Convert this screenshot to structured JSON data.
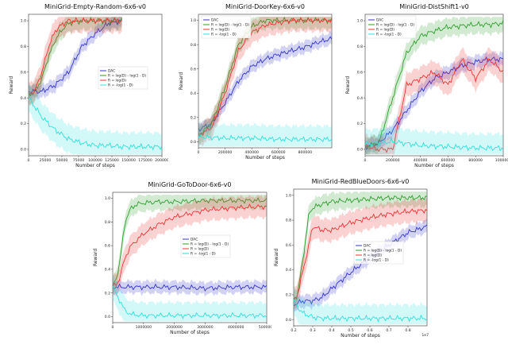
{
  "chart_data": [
    {
      "type": "line",
      "title": "MiniGrid-Empty-Random-6x6-v0",
      "xlabel": "Number of steps",
      "ylabel": "Reward",
      "xlim": [
        0,
        200000
      ],
      "ylim": [
        -0.05,
        1.05
      ],
      "xticks": [
        0,
        25000,
        50000,
        75000,
        100000,
        125000,
        150000,
        175000,
        200000
      ],
      "xtick_labels": [
        "0",
        "25000",
        "50000",
        "75000",
        "100000",
        "125000",
        "150000",
        "175000",
        "200000"
      ],
      "yticks": [
        0.0,
        0.2,
        0.4,
        0.6,
        0.8,
        1.0
      ],
      "ytick_labels": [
        "0.0",
        "0.2",
        "0.4",
        "0.6",
        "0.8",
        "1.0"
      ],
      "legend_position": "center-right",
      "series": [
        {
          "name": "DAC",
          "color": "#3333cc",
          "x": [
            0,
            20000,
            40000,
            60000,
            80000,
            100000,
            120000,
            140000
          ],
          "y": [
            0.45,
            0.45,
            0.5,
            0.6,
            0.8,
            0.9,
            0.98,
            1.0
          ]
        },
        {
          "name": "R = log(D) - log(1 - D)",
          "color": "#2e9e2e",
          "x": [
            0,
            10000,
            20000,
            30000,
            40000,
            50000,
            60000,
            80000,
            140000
          ],
          "y": [
            0.42,
            0.45,
            0.55,
            0.72,
            0.85,
            0.93,
            0.98,
            1.0,
            1.0
          ]
        },
        {
          "name": "R = log(D)",
          "color": "#ee3333",
          "x": [
            0,
            10000,
            20000,
            30000,
            40000,
            50000,
            60000,
            80000,
            140000
          ],
          "y": [
            0.42,
            0.46,
            0.6,
            0.8,
            0.92,
            0.97,
            1.0,
            1.0,
            1.0
          ]
        },
        {
          "name": "R = -log(1 - D)",
          "color": "#33dddd",
          "x": [
            0,
            20000,
            40000,
            60000,
            80000,
            100000,
            120000,
            140000,
            160000,
            200000
          ],
          "y": [
            0.4,
            0.25,
            0.15,
            0.08,
            0.05,
            0.03,
            0.03,
            0.02,
            0.02,
            0.02
          ]
        }
      ]
    },
    {
      "type": "line",
      "title": "MiniGrid-DoorKey-6x6-v0",
      "xlabel": "Number of steps",
      "ylabel": "Reward",
      "xlim": [
        0,
        1000000
      ],
      "ylim": [
        -0.05,
        1.05
      ],
      "xticks": [
        0,
        200000,
        400000,
        600000,
        800000
      ],
      "xtick_labels": [
        "0",
        "200000",
        "400000",
        "600000",
        "800000"
      ],
      "yticks": [
        0.0,
        0.2,
        0.4,
        0.6,
        0.8,
        1.0
      ],
      "ytick_labels": [
        "0.0",
        "0.2",
        "0.4",
        "0.6",
        "0.8",
        "1.0"
      ],
      "legend_position": "top-left",
      "series": [
        {
          "name": "DAC",
          "color": "#3333cc",
          "x": [
            0,
            100000,
            200000,
            300000,
            400000,
            500000,
            600000,
            700000,
            800000,
            900000,
            1000000
          ],
          "y": [
            0.1,
            0.15,
            0.32,
            0.5,
            0.62,
            0.68,
            0.72,
            0.75,
            0.78,
            0.82,
            0.85
          ]
        },
        {
          "name": "R = log(D) - log(1 - D)",
          "color": "#2e9e2e",
          "x": [
            0,
            100000,
            200000,
            300000,
            400000,
            500000,
            600000,
            700000,
            1000000
          ],
          "y": [
            0.05,
            0.15,
            0.45,
            0.8,
            0.95,
            1.0,
            1.0,
            1.0,
            1.0
          ]
        },
        {
          "name": "R = log(D)",
          "color": "#ee3333",
          "x": [
            0,
            100000,
            200000,
            300000,
            400000,
            500000,
            600000,
            700000,
            1000000
          ],
          "y": [
            0.05,
            0.12,
            0.4,
            0.75,
            0.9,
            0.96,
            0.98,
            1.0,
            1.0
          ]
        },
        {
          "name": "R = -log(1 - D)",
          "color": "#33dddd",
          "x": [
            0,
            200000,
            400000,
            600000,
            800000,
            1000000
          ],
          "y": [
            0.04,
            0.03,
            0.03,
            0.02,
            0.02,
            0.02
          ]
        }
      ]
    },
    {
      "type": "line",
      "title": "MiniGrid-DistShift1-v0",
      "xlabel": "Number of steps",
      "ylabel": "Reward",
      "xlim": [
        0,
        1000000
      ],
      "ylim": [
        -0.05,
        1.05
      ],
      "xticks": [
        0,
        200000,
        400000,
        600000,
        800000,
        1000000
      ],
      "xtick_labels": [
        "0",
        "200000",
        "400000",
        "600000",
        "800000",
        "1000000"
      ],
      "yticks": [
        0.0,
        0.2,
        0.4,
        0.6,
        0.8,
        1.0
      ],
      "ytick_labels": [
        "0.0",
        "0.2",
        "0.4",
        "0.6",
        "0.8",
        "1.0"
      ],
      "legend_position": "top-left",
      "series": [
        {
          "name": "DAC",
          "color": "#3333cc",
          "x": [
            0,
            100000,
            200000,
            300000,
            400000,
            500000,
            600000,
            700000,
            800000,
            900000,
            1000000
          ],
          "y": [
            0.02,
            0.05,
            0.15,
            0.3,
            0.45,
            0.55,
            0.6,
            0.65,
            0.68,
            0.7,
            0.7
          ]
        },
        {
          "name": "R = log(D) - log(1 - D)",
          "color": "#2e9e2e",
          "x": [
            0,
            100000,
            200000,
            300000,
            400000,
            500000,
            600000,
            700000,
            800000,
            900000,
            1000000
          ],
          "y": [
            0.02,
            0.05,
            0.4,
            0.75,
            0.88,
            0.92,
            0.95,
            0.96,
            0.97,
            0.97,
            0.98
          ]
        },
        {
          "name": "R = log(D)",
          "color": "#ee3333",
          "x": [
            0,
            100000,
            200000,
            300000,
            400000,
            500000,
            600000,
            700000,
            800000,
            900000,
            1000000
          ],
          "y": [
            0.02,
            0.0,
            0.0,
            0.5,
            0.55,
            0.6,
            0.5,
            0.7,
            0.55,
            0.7,
            0.6
          ]
        },
        {
          "name": "R = -log(1 - D)",
          "color": "#33dddd",
          "x": [
            0,
            200000,
            400000,
            600000,
            800000,
            1000000
          ],
          "y": [
            0.04,
            0.06,
            0.03,
            0.02,
            0.01,
            0.01
          ]
        }
      ]
    },
    {
      "type": "line",
      "title": "MiniGrid-GoToDoor-6x6-v0",
      "xlabel": "Number of steps",
      "ylabel": "Reward",
      "xlim": [
        0,
        5000000
      ],
      "ylim": [
        -0.05,
        1.05
      ],
      "xticks": [
        0,
        1000000,
        2000000,
        3000000,
        4000000,
        5000000
      ],
      "xtick_labels": [
        "0",
        "1000000",
        "2000000",
        "3000000",
        "4000000",
        "5000000"
      ],
      "yticks": [
        0.0,
        0.2,
        0.4,
        0.6,
        0.8,
        1.0
      ],
      "ytick_labels": [
        "0.0",
        "0.2",
        "0.4",
        "0.6",
        "0.8",
        "1.0"
      ],
      "legend_position": "center-right",
      "series": [
        {
          "name": "DAC",
          "color": "#3333cc",
          "x": [
            0,
            500000,
            1000000,
            2000000,
            3000000,
            4000000,
            5000000
          ],
          "y": [
            0.25,
            0.25,
            0.25,
            0.25,
            0.24,
            0.25,
            0.25
          ]
        },
        {
          "name": "R = log(D) - log(1 - D)",
          "color": "#2e9e2e",
          "x": [
            0,
            200000,
            400000,
            600000,
            800000,
            1000000,
            1500000,
            2000000,
            3000000,
            4000000,
            5000000
          ],
          "y": [
            0.25,
            0.4,
            0.8,
            0.92,
            0.95,
            0.96,
            0.97,
            0.97,
            0.98,
            0.98,
            0.98
          ]
        },
        {
          "name": "R = log(D)",
          "color": "#ee3333",
          "x": [
            0,
            200000,
            400000,
            600000,
            1000000,
            1500000,
            2000000,
            3000000,
            4000000,
            5000000
          ],
          "y": [
            0.25,
            0.3,
            0.5,
            0.6,
            0.7,
            0.78,
            0.84,
            0.9,
            0.92,
            0.93
          ]
        },
        {
          "name": "R = -log(1 - D)",
          "color": "#33dddd",
          "x": [
            0,
            200000,
            400000,
            600000,
            1000000,
            2000000,
            5000000
          ],
          "y": [
            0.25,
            0.15,
            0.05,
            0.02,
            0.01,
            0.01,
            0.01
          ]
        }
      ]
    },
    {
      "type": "line",
      "title": "MiniGrid-RedBlueDoors-6x6-v0",
      "xlabel": "Number of steps",
      "ylabel": "Reward",
      "xlim": [
        0.2,
        0.9
      ],
      "ylim": [
        -0.05,
        1.05
      ],
      "xticks": [
        0.2,
        0.3,
        0.4,
        0.5,
        0.6,
        0.7,
        0.8
      ],
      "xtick_labels": [
        "0.2",
        "0.3",
        "0.4",
        "0.5",
        "0.6",
        "0.7",
        "0.8"
      ],
      "yticks": [
        0.0,
        0.2,
        0.4,
        0.6,
        0.8,
        1.0
      ],
      "ytick_labels": [
        "0.0",
        "0.2",
        "0.4",
        "0.6",
        "0.8",
        "1.0"
      ],
      "axis_multiplier": "1e7",
      "legend_position": "center-right",
      "series": [
        {
          "name": "DAC",
          "color": "#3333cc",
          "x": [
            0.2,
            0.25,
            0.3,
            0.35,
            0.4,
            0.5,
            0.6,
            0.7,
            0.8,
            0.9
          ],
          "y": [
            0.12,
            0.15,
            0.15,
            0.18,
            0.25,
            0.38,
            0.5,
            0.6,
            0.7,
            0.75
          ]
        },
        {
          "name": "R = log(D) - log(1 - D)",
          "color": "#2e9e2e",
          "x": [
            0.2,
            0.22,
            0.25,
            0.28,
            0.3,
            0.35,
            0.4,
            0.5,
            0.6,
            0.7,
            0.8,
            0.9
          ],
          "y": [
            0.15,
            0.2,
            0.5,
            0.85,
            0.9,
            0.93,
            0.95,
            0.96,
            0.97,
            0.98,
            0.98,
            0.98
          ]
        },
        {
          "name": "R = log(D)",
          "color": "#ee3333",
          "x": [
            0.2,
            0.22,
            0.25,
            0.28,
            0.3,
            0.35,
            0.4,
            0.5,
            0.6,
            0.7,
            0.8,
            0.9
          ],
          "y": [
            0.15,
            0.2,
            0.4,
            0.6,
            0.75,
            0.72,
            0.72,
            0.78,
            0.82,
            0.85,
            0.87,
            0.88
          ]
        },
        {
          "name": "R = -log(1 - D)",
          "color": "#33dddd",
          "x": [
            0.2,
            0.22,
            0.25,
            0.3,
            0.35,
            0.4,
            0.6,
            0.9
          ],
          "y": [
            0.15,
            0.1,
            0.05,
            0.02,
            0.01,
            0.01,
            0.01,
            0.01
          ]
        }
      ]
    }
  ]
}
